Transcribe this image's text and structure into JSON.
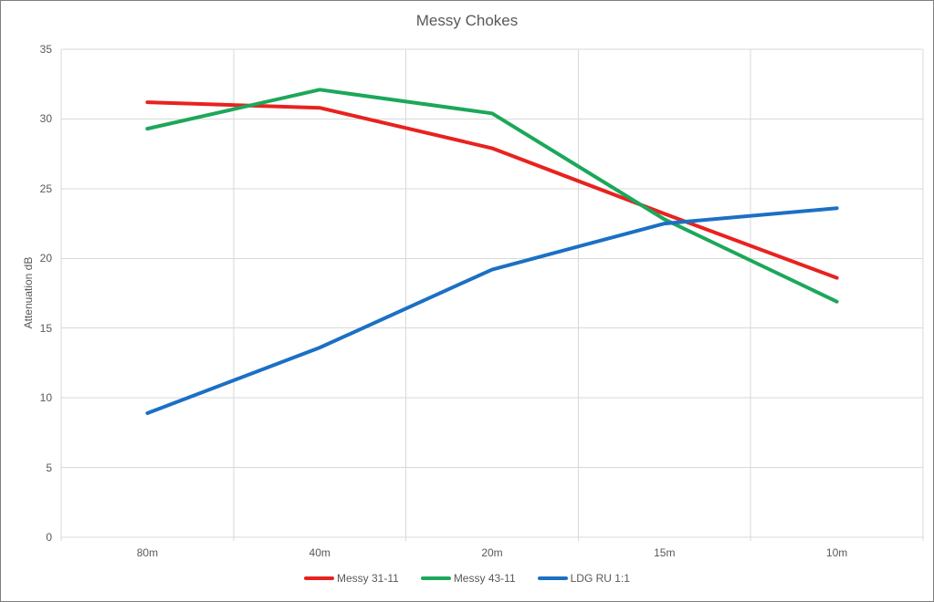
{
  "chart_data": {
    "type": "line",
    "title": "Messy Chokes",
    "xlabel": "",
    "ylabel": "Attenuation dB",
    "categories": [
      "80m",
      "40m",
      "20m",
      "15m",
      "10m"
    ],
    "series": [
      {
        "name": "Messy 31-11",
        "color": "#e8221f",
        "values": [
          31.2,
          30.8,
          27.9,
          23.2,
          18.6
        ]
      },
      {
        "name": "Messy 43-11",
        "color": "#1ca75a",
        "values": [
          29.3,
          32.1,
          30.4,
          22.8,
          16.9
        ]
      },
      {
        "name": "LDG RU 1:1",
        "color": "#1b70c4",
        "values": [
          8.9,
          13.6,
          19.2,
          22.5,
          23.6
        ]
      }
    ],
    "ylim": [
      0,
      35
    ],
    "ytick_step": 5,
    "grid": true,
    "legend_position": "bottom"
  },
  "colors": {
    "gridline": "#d9d9d9",
    "axis_text": "#595959",
    "title_text": "#595959",
    "background": "#ffffff",
    "border": "#7f7f7f"
  }
}
